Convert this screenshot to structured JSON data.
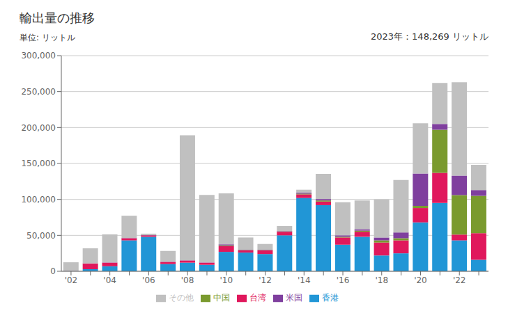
{
  "chart_data": {
    "type": "bar",
    "title": "輸出量の推移",
    "subtitle": "単位: リットル",
    "annotation": "2023年：148,269 リットル",
    "stacked": true,
    "grid": true,
    "legend": "bottom",
    "categories": [
      "'02",
      null,
      "'04",
      null,
      "'06",
      null,
      "'08",
      null,
      "'10",
      null,
      "'12",
      null,
      "'14",
      null,
      "'16",
      null,
      "'18",
      null,
      "'20",
      null,
      "'22",
      null
    ],
    "series": [
      {
        "name": "香港",
        "color": "#2196d6",
        "values": [
          300,
          3000,
          7000,
          43000,
          48000,
          10000,
          12000,
          9000,
          27000,
          26000,
          24000,
          50000,
          102000,
          92000,
          37000,
          48000,
          22000,
          25000,
          68000,
          95000,
          43000,
          16000
        ]
      },
      {
        "name": "台湾",
        "color": "#e0185c",
        "values": [
          200,
          8000,
          5000,
          3000,
          2000,
          3000,
          3000,
          3000,
          8000,
          3000,
          5000,
          5000,
          5000,
          5000,
          10000,
          7000,
          18000,
          18000,
          20000,
          42000,
          8000,
          37000
        ]
      },
      {
        "name": "中国",
        "color": "#7a9a2e",
        "values": [
          0,
          0,
          0,
          0,
          0,
          0,
          0,
          0,
          1000,
          500,
          500,
          500,
          1000,
          1500,
          1000,
          1500,
          3000,
          3000,
          3000,
          60000,
          55000,
          52000
        ]
      },
      {
        "name": "米国",
        "color": "#7f3f9e",
        "values": [
          0,
          0,
          300,
          300,
          300,
          300,
          300,
          300,
          1500,
          500,
          500,
          500,
          1500,
          2000,
          2000,
          2000,
          4000,
          8000,
          45000,
          8000,
          27000,
          8000
        ]
      },
      {
        "name": "その他",
        "color": "#c0c0c0",
        "values": [
          12000,
          21000,
          39000,
          31000,
          2000,
          15000,
          174000,
          94000,
          71000,
          17000,
          8000,
          7000,
          4000,
          35000,
          46000,
          40000,
          53000,
          73000,
          70000,
          57000,
          130000,
          35000
        ]
      }
    ],
    "ylim": [
      0,
      300000
    ],
    "yticks": [
      0,
      {
        "value": 50000,
        "label": "50,000"
      },
      {
        "value": 100000,
        "label": "100,000"
      },
      {
        "value": 150000,
        "label": "150,000"
      },
      {
        "value": 200000,
        "label": "200,000"
      },
      {
        "value": 250000,
        "label": "250,000"
      },
      {
        "value": 300000,
        "label": "300,000"
      }
    ]
  }
}
